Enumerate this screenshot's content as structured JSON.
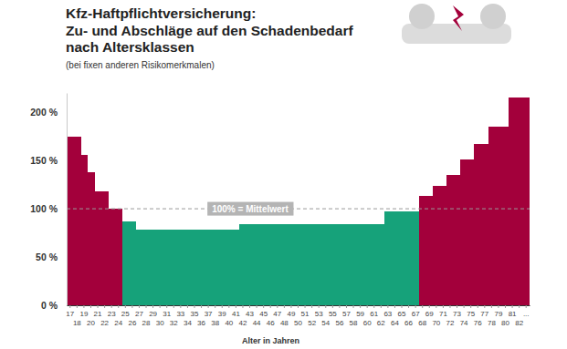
{
  "chart_data": {
    "type": "bar",
    "title": [
      "Kfz-Haftpflichtversicherung:",
      "Zu- und Abschläge auf den Schadenbedarf",
      "nach Altersklassen"
    ],
    "subtitle": "(bei fixen anderen Risikomerkmalen)",
    "x_label": "Alter in Jahren",
    "categories": [
      "17",
      "18",
      "19",
      "20",
      "21",
      "22",
      "23",
      "24",
      "25",
      "26",
      "27",
      "28",
      "29",
      "30",
      "31",
      "32",
      "33",
      "34",
      "35",
      "36",
      "37",
      "38",
      "39",
      "40",
      "41",
      "42",
      "43",
      "44",
      "45",
      "46",
      "47",
      "48",
      "49",
      "50",
      "51",
      "52",
      "53",
      "54",
      "55",
      "56",
      "57",
      "58",
      "59",
      "60",
      "61",
      "62",
      "63",
      "64",
      "65",
      "66",
      "67",
      "68",
      "69",
      "70",
      "71",
      "72",
      "73",
      "74",
      "75",
      "76",
      "77",
      "78",
      "79",
      "80",
      "81",
      "82",
      "..."
    ],
    "values": [
      175,
      175,
      156,
      138,
      118,
      118,
      100,
      100,
      87,
      87,
      78,
      78,
      78,
      78,
      78,
      78,
      78,
      78,
      78,
      78,
      78,
      78,
      78,
      78,
      78,
      84,
      84,
      84,
      84,
      84,
      84,
      84,
      84,
      84,
      84,
      84,
      84,
      84,
      84,
      84,
      84,
      84,
      84,
      84,
      84,
      84,
      97,
      97,
      97,
      97,
      97,
      113,
      113,
      124,
      124,
      135,
      135,
      151,
      151,
      167,
      167,
      185,
      185,
      185,
      215,
      215,
      215
    ],
    "colors": [
      "#a3003b",
      "#a3003b",
      "#a3003b",
      "#a3003b",
      "#a3003b",
      "#a3003b",
      "#a3003b",
      "#a3003b",
      "#16a27a",
      "#16a27a",
      "#16a27a",
      "#16a27a",
      "#16a27a",
      "#16a27a",
      "#16a27a",
      "#16a27a",
      "#16a27a",
      "#16a27a",
      "#16a27a",
      "#16a27a",
      "#16a27a",
      "#16a27a",
      "#16a27a",
      "#16a27a",
      "#16a27a",
      "#16a27a",
      "#16a27a",
      "#16a27a",
      "#16a27a",
      "#16a27a",
      "#16a27a",
      "#16a27a",
      "#16a27a",
      "#16a27a",
      "#16a27a",
      "#16a27a",
      "#16a27a",
      "#16a27a",
      "#16a27a",
      "#16a27a",
      "#16a27a",
      "#16a27a",
      "#16a27a",
      "#16a27a",
      "#16a27a",
      "#16a27a",
      "#16a27a",
      "#16a27a",
      "#16a27a",
      "#16a27a",
      "#16a27a",
      "#a3003b",
      "#a3003b",
      "#a3003b",
      "#a3003b",
      "#a3003b",
      "#a3003b",
      "#a3003b",
      "#a3003b",
      "#a3003b",
      "#a3003b",
      "#a3003b",
      "#a3003b",
      "#a3003b",
      "#a3003b",
      "#a3003b",
      "#a3003b"
    ],
    "ylim": [
      0,
      220
    ],
    "yticks": [
      {
        "value": 0,
        "label": "0 %"
      },
      {
        "value": 50,
        "label": "50 %"
      },
      {
        "value": 100,
        "label": "100 %"
      },
      {
        "value": 150,
        "label": "150 %"
      },
      {
        "value": 200,
        "label": "200 %"
      }
    ],
    "annotations": [
      {
        "text": "100% = Mittelwert",
        "y": 100
      }
    ],
    "grid": false
  }
}
